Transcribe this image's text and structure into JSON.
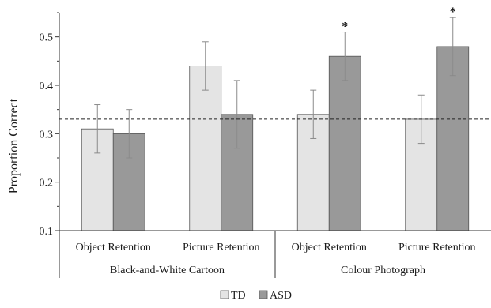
{
  "chart_data": {
    "type": "bar",
    "ylabel": "Proportion Correct",
    "xlabel": "",
    "ylim": [
      0.1,
      0.55
    ],
    "yticks": [
      "0.1",
      "0.2",
      "0.3",
      "0.4",
      "0.5"
    ],
    "y_major_step": 0.1,
    "y_minor_step": 0.05,
    "grid": false,
    "reference_line": {
      "value": 0.33,
      "style": "dashed"
    },
    "categories": [
      "Object Retention",
      "Picture Retention",
      "Object Retention",
      "Picture Retention"
    ],
    "groups": [
      {
        "label": "Black-and-White Cartoon",
        "categories": [
          0,
          1
        ]
      },
      {
        "label": "Colour Photograph",
        "categories": [
          2,
          3
        ]
      }
    ],
    "series": [
      {
        "name": "TD",
        "color": "#e4e4e4",
        "values": [
          0.31,
          0.44,
          0.34,
          0.33
        ],
        "errors": [
          0.05,
          0.05,
          0.05,
          0.05
        ]
      },
      {
        "name": "ASD",
        "color": "#999999",
        "values": [
          0.3,
          0.34,
          0.46,
          0.48
        ],
        "errors": [
          0.05,
          0.07,
          0.05,
          0.06
        ]
      }
    ],
    "significance": [
      {
        "category": 2,
        "series": 1,
        "mark": "*"
      },
      {
        "category": 3,
        "series": 1,
        "mark": "*"
      }
    ],
    "legend": {
      "placement": "bottom",
      "entries": [
        "TD",
        "ASD"
      ]
    }
  }
}
